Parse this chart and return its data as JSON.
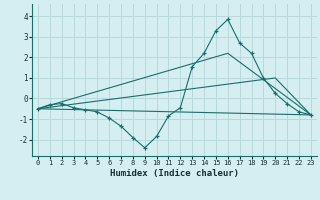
{
  "xlabel": "Humidex (Indice chaleur)",
  "background_color": "#d4eef2",
  "grid_color": "#b8d8dc",
  "line_color": "#1a6e6a",
  "xlim": [
    -0.5,
    23.5
  ],
  "ylim": [
    -2.8,
    4.6
  ],
  "xticks": [
    0,
    1,
    2,
    3,
    4,
    5,
    6,
    7,
    8,
    9,
    10,
    11,
    12,
    13,
    14,
    15,
    16,
    17,
    18,
    19,
    20,
    21,
    22,
    23
  ],
  "yticks": [
    -2,
    -1,
    0,
    1,
    2,
    3,
    4
  ],
  "line1_x": [
    0,
    1,
    2,
    3,
    4,
    5,
    6,
    7,
    8,
    9,
    10,
    11,
    12,
    13,
    14,
    15,
    16,
    17,
    18,
    19,
    20,
    21,
    22,
    23
  ],
  "line1_y": [
    -0.5,
    -0.3,
    -0.25,
    -0.45,
    -0.55,
    -0.65,
    -0.95,
    -1.35,
    -1.9,
    -2.4,
    -1.85,
    -0.85,
    -0.45,
    1.55,
    2.2,
    3.3,
    3.85,
    2.7,
    2.2,
    1.0,
    0.25,
    -0.25,
    -0.65,
    -0.8
  ],
  "line2_x": [
    0,
    23
  ],
  "line2_y": [
    -0.5,
    -0.8
  ],
  "line3_x": [
    0,
    20,
    23
  ],
  "line3_y": [
    -0.5,
    1.0,
    -0.8
  ],
  "line4_x": [
    0,
    16,
    23
  ],
  "line4_y": [
    -0.5,
    2.2,
    -0.8
  ]
}
